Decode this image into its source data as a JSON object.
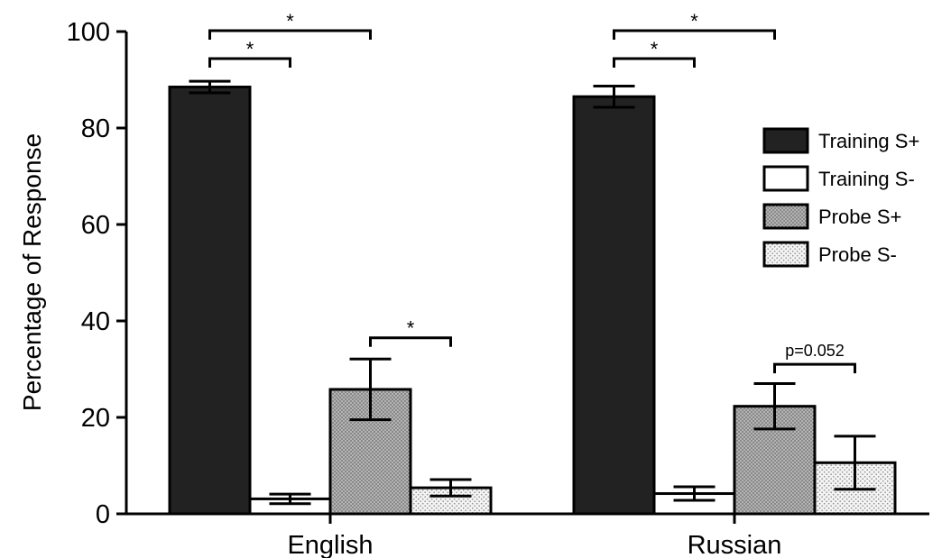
{
  "chart_data": {
    "type": "bar",
    "title": "",
    "xlabel": "",
    "ylabel": "Percentage of Response",
    "ylim": [
      0,
      100
    ],
    "yticks": [
      0,
      20,
      40,
      60,
      80,
      100
    ],
    "categories": [
      "English",
      "Russian"
    ],
    "grid": false,
    "legend_position": "right",
    "series": [
      {
        "name": "Training S+",
        "values": [
          88.5,
          86.5
        ],
        "errors": [
          1.2,
          2.2
        ],
        "fill": "#222222",
        "pattern": "solid"
      },
      {
        "name": "Training S-",
        "values": [
          3.1,
          4.2
        ],
        "errors": [
          1.0,
          1.4
        ],
        "fill": "#ffffff",
        "pattern": "solid"
      },
      {
        "name": "Probe S+",
        "values": [
          25.8,
          22.3
        ],
        "errors": [
          6.3,
          4.7
        ],
        "fill": "#aaaaaa",
        "pattern": "dense-dots"
      },
      {
        "name": "Probe S-",
        "values": [
          5.4,
          10.6
        ],
        "errors": [
          1.7,
          5.5
        ],
        "fill": "#eeeeee",
        "pattern": "sparse-dots"
      }
    ],
    "annotations": [
      {
        "category": "English",
        "from_series": 0,
        "to_series": 2,
        "label": "*",
        "level": 2
      },
      {
        "category": "English",
        "from_series": 0,
        "to_series": 1,
        "label": "*",
        "level": 1
      },
      {
        "category": "English",
        "from_series": 2,
        "to_series": 3,
        "label": "*",
        "y": 36.5
      },
      {
        "category": "Russian",
        "from_series": 0,
        "to_series": 2,
        "label": "*",
        "level": 2
      },
      {
        "category": "Russian",
        "from_series": 0,
        "to_series": 1,
        "label": "*",
        "level": 1
      },
      {
        "category": "Russian",
        "from_series": 2,
        "to_series": 3,
        "label": "p=0.052",
        "y": 31.0
      }
    ]
  }
}
